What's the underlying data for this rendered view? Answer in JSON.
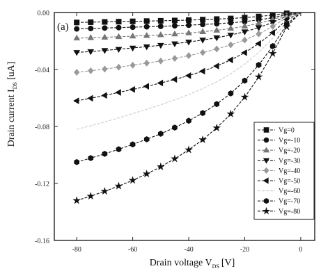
{
  "chart_data": {
    "type": "line",
    "panel_label": "(a)",
    "xlabel": "Drain voltage V",
    "xlabel_sub": "DS",
    "xlabel_unit": "[V]",
    "ylabel": "Drain current I",
    "ylabel_sub": "DS",
    "ylabel_unit": "[uA]",
    "xlim": [
      -88,
      5
    ],
    "ylim": [
      -0.016,
      0.0
    ],
    "xticks": [
      -80,
      -60,
      -40,
      -20,
      0
    ],
    "xtick_labels": [
      "-80",
      "-60",
      "-40",
      "-20",
      "0"
    ],
    "yticks": [
      0.0,
      -0.004,
      -0.008,
      -0.012,
      -0.016
    ],
    "ytick_labels": [
      "0.00",
      "-0.04",
      "-0.08",
      "-0.12",
      "-0.16"
    ],
    "grid": false,
    "legend_position": "right",
    "x": [
      -80,
      -75,
      -70,
      -65,
      -60,
      -55,
      -50,
      -45,
      -40,
      -35,
      -30,
      -25,
      -20,
      -15,
      -10,
      -5,
      0
    ],
    "series": [
      {
        "name": "Vg=0",
        "marker": "square",
        "color": "#111111",
        "values": [
          -0.0007,
          -0.00068,
          -0.00066,
          -0.00064,
          -0.00062,
          -0.0006,
          -0.00058,
          -0.00056,
          -0.00053,
          -0.0005,
          -0.00046,
          -0.00042,
          -0.00036,
          -0.00028,
          -0.00018,
          -6e-05,
          0.0
        ]
      },
      {
        "name": "Vg=-10",
        "marker": "circle",
        "color": "#111111",
        "values": [
          -0.00115,
          -0.00112,
          -0.00109,
          -0.00106,
          -0.00103,
          -0.001,
          -0.00097,
          -0.00093,
          -0.00089,
          -0.00084,
          -0.00079,
          -0.00072,
          -0.00064,
          -0.00052,
          -0.00036,
          -0.00014,
          0.0
        ]
      },
      {
        "name": "Vg=-20",
        "marker": "triangle-up",
        "color": "#777777",
        "values": [
          -0.0018,
          -0.00177,
          -0.00174,
          -0.0017,
          -0.00166,
          -0.00162,
          -0.00157,
          -0.00151,
          -0.00144,
          -0.00135,
          -0.00125,
          -0.00112,
          -0.00096,
          -0.00076,
          -0.0005,
          -0.00018,
          0.0
        ]
      },
      {
        "name": "Vg=-30",
        "marker": "triangle-down",
        "color": "#111111",
        "values": [
          -0.0028,
          -0.00274,
          -0.00266,
          -0.00258,
          -0.00249,
          -0.0024,
          -0.0023,
          -0.00219,
          -0.00207,
          -0.00193,
          -0.00177,
          -0.00158,
          -0.00135,
          -0.00106,
          -0.0007,
          -0.00025,
          0.0
        ]
      },
      {
        "name": "Vg=-40",
        "marker": "diamond",
        "color": "#999999",
        "values": [
          -0.0042,
          -0.00409,
          -0.00397,
          -0.00384,
          -0.0037,
          -0.00355,
          -0.0034,
          -0.00322,
          -0.00303,
          -0.00281,
          -0.00256,
          -0.00227,
          -0.00193,
          -0.0015,
          -0.00098,
          -0.00035,
          0.0
        ]
      },
      {
        "name": "Vg=-50",
        "marker": "triangle-left",
        "color": "#111111",
        "values": [
          -0.0062,
          -0.00602,
          -0.00582,
          -0.00561,
          -0.0054,
          -0.00518,
          -0.00495,
          -0.0047,
          -0.00443,
          -0.00412,
          -0.00376,
          -0.00333,
          -0.00282,
          -0.00218,
          -0.00142,
          -0.0005,
          0.0
        ]
      },
      {
        "name": "Vg=-60",
        "marker": "none",
        "color": "#cccccc",
        "values": [
          -0.0082,
          -0.00795,
          -0.00768,
          -0.0074,
          -0.0071,
          -0.0068,
          -0.00648,
          -0.00613,
          -0.00576,
          -0.00534,
          -0.00487,
          -0.0043,
          -0.00362,
          -0.0028,
          -0.00182,
          -0.00065,
          0.0
        ]
      },
      {
        "name": "Vg=-70",
        "marker": "hexagon",
        "color": "#111111",
        "values": [
          -0.0105,
          -0.01022,
          -0.00992,
          -0.0096,
          -0.00926,
          -0.0089,
          -0.00851,
          -0.00808,
          -0.0076,
          -0.00706,
          -0.00643,
          -0.00568,
          -0.00478,
          -0.00368,
          -0.00236,
          -0.00082,
          0.0
        ]
      },
      {
        "name": "Vg=-80",
        "marker": "star",
        "color": "#111111",
        "values": [
          -0.0132,
          -0.01289,
          -0.01255,
          -0.01218,
          -0.01178,
          -0.01133,
          -0.01083,
          -0.01027,
          -0.00964,
          -0.00893,
          -0.0081,
          -0.00712,
          -0.00594,
          -0.00452,
          -0.00288,
          -0.001,
          0.0
        ]
      }
    ]
  }
}
